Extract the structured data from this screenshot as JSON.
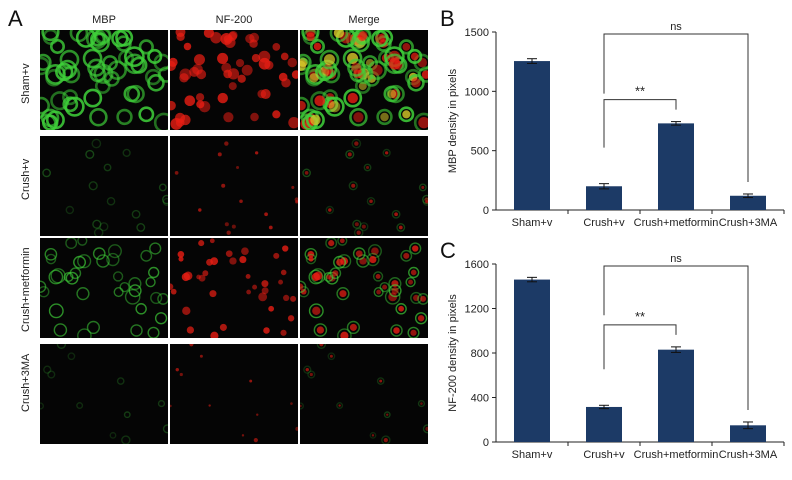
{
  "panel_a": {
    "letter": "A",
    "columns": [
      "MBP",
      "NF-200",
      "Merge"
    ],
    "rows": [
      "Sham+v",
      "Crush+v",
      "Crush+metformin",
      "Crush+3MA"
    ]
  },
  "colors": {
    "bar": "#1c3a66",
    "green_stain": "#3fd13a",
    "red_stain": "#e81e14",
    "merge_yellow": "#d8c82a"
  },
  "chart_data": [
    {
      "letter": "B",
      "type": "bar",
      "categories": [
        "Sham+v",
        "Crush+v",
        "Crush+metformin",
        "Crush+3MA"
      ],
      "values": [
        1255,
        200,
        730,
        120
      ],
      "errors": [
        20,
        22,
        15,
        15
      ],
      "ylabel": "MBP density in pixels",
      "ylim": [
        0,
        1500
      ],
      "yticks": [
        "0",
        "500",
        "1000",
        "1500"
      ],
      "grid": false,
      "annotations": [
        {
          "text": "**",
          "from": "Crush+v",
          "to": "Crush+metformin"
        },
        {
          "text": "ns",
          "from": "Crush+v",
          "to": "Crush+3MA"
        }
      ]
    },
    {
      "letter": "C",
      "type": "bar",
      "categories": [
        "Sham+v",
        "Crush+v",
        "Crush+metformin",
        "Crush+3MA"
      ],
      "values": [
        1460,
        315,
        830,
        150
      ],
      "errors": [
        20,
        15,
        25,
        30
      ],
      "ylabel": "NF-200 density in pixels",
      "ylim": [
        0,
        1600
      ],
      "yticks": [
        "0",
        "400",
        "800",
        "1200",
        "1600"
      ],
      "grid": false,
      "annotations": [
        {
          "text": "**",
          "from": "Crush+v",
          "to": "Crush+metformin"
        },
        {
          "text": "ns",
          "from": "Crush+v",
          "to": "Crush+3MA"
        }
      ]
    }
  ]
}
